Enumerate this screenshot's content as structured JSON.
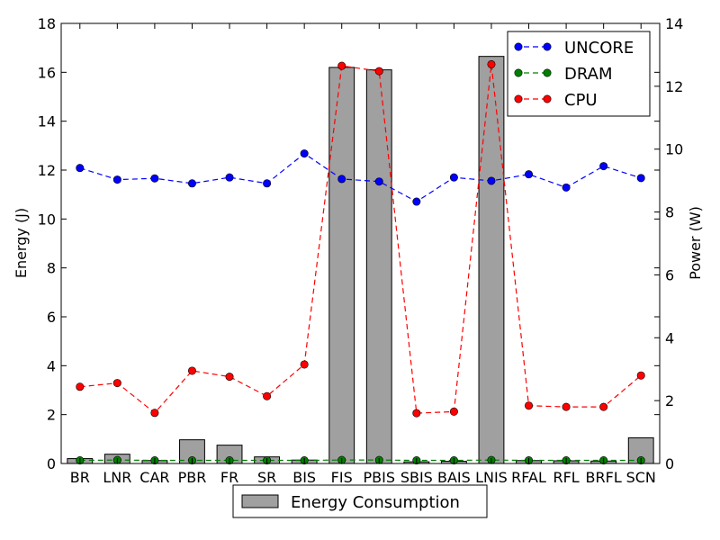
{
  "chart_data": {
    "type": "bar",
    "categories": [
      "BR",
      "LNR",
      "CAR",
      "PBR",
      "FR",
      "SR",
      "BIS",
      "FIS",
      "PBIS",
      "SBIS",
      "BAIS",
      "LNIS",
      "RFAL",
      "RFL",
      "BRFL",
      "SCN"
    ],
    "ylabel": "Energy (J)",
    "y2label": "Power (W)",
    "ylim": [
      0,
      18
    ],
    "y2lim": [
      0,
      14
    ],
    "yticks": [
      0,
      2,
      4,
      6,
      8,
      10,
      12,
      14,
      16,
      18
    ],
    "y2ticks": [
      0,
      2,
      4,
      6,
      8,
      10,
      12,
      14
    ],
    "bar_series": {
      "name": "Energy Consumption",
      "axis": "left",
      "color": "#a0a0a0",
      "values": [
        0.2,
        0.38,
        0.12,
        0.97,
        0.75,
        0.27,
        0.14,
        16.2,
        16.1,
        0.07,
        0.09,
        16.65,
        0.12,
        0.11,
        0.1,
        1.05
      ]
    },
    "line_series": [
      {
        "name": "UNCORE",
        "axis": "right",
        "color": "#0000ff",
        "values": [
          9.4,
          9.03,
          9.07,
          8.91,
          9.1,
          8.91,
          9.86,
          9.05,
          8.97,
          8.33,
          9.1,
          8.99,
          9.2,
          8.78,
          9.46,
          9.08
        ]
      },
      {
        "name": "DRAM",
        "axis": "right",
        "color": "#008000",
        "values": [
          0.1,
          0.11,
          0.1,
          0.1,
          0.1,
          0.1,
          0.1,
          0.11,
          0.11,
          0.1,
          0.1,
          0.11,
          0.1,
          0.1,
          0.1,
          0.1
        ]
      },
      {
        "name": "CPU",
        "axis": "right",
        "color": "#ff0000",
        "values": [
          2.44,
          2.56,
          1.61,
          2.95,
          2.76,
          2.14,
          3.15,
          12.65,
          12.48,
          1.6,
          1.65,
          12.7,
          1.84,
          1.8,
          1.8,
          2.8
        ]
      }
    ],
    "bar_legend_placement": "bottom-center",
    "line_legend_placement": "top-right",
    "grid": false
  }
}
